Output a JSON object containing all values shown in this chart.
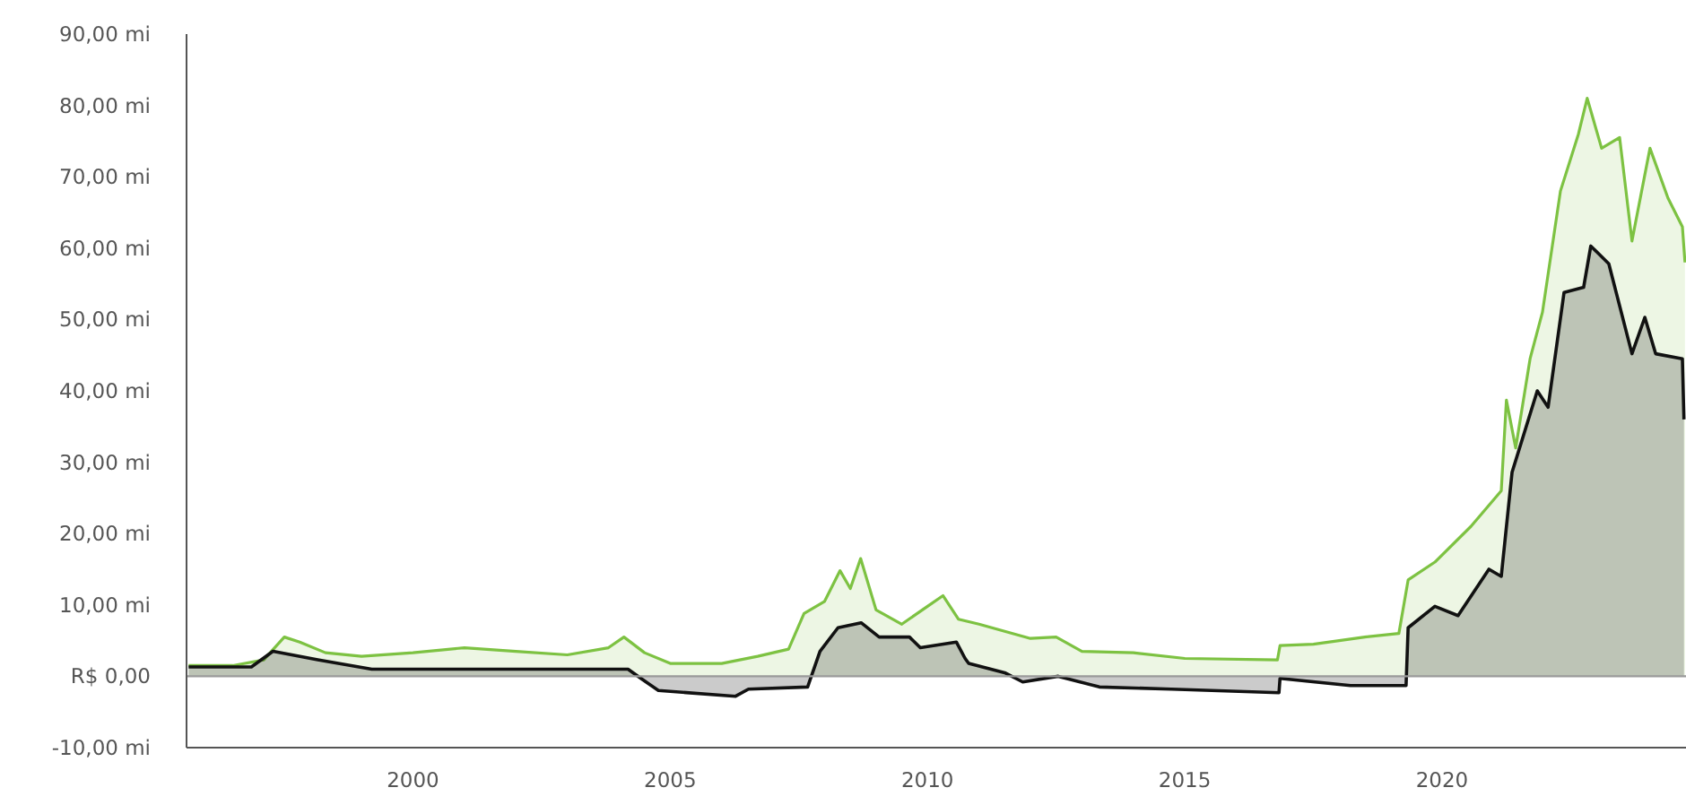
{
  "chart_data": {
    "type": "area",
    "xlim": [
      1995.6,
      2024.74
    ],
    "xticks": [
      2000,
      2005,
      2010,
      2015,
      2020
    ],
    "ylim": [
      -10,
      90
    ],
    "yticks": [
      {
        "value": -10,
        "label": "-10,00 mi"
      },
      {
        "value": 0,
        "label": "R$ 0,00"
      },
      {
        "value": 10,
        "label": "10,00 mi"
      },
      {
        "value": 20,
        "label": "20,00 mi"
      },
      {
        "value": 30,
        "label": "30,00 mi"
      },
      {
        "value": 40,
        "label": "40,00 mi"
      },
      {
        "value": 50,
        "label": "50,00 mi"
      },
      {
        "value": 60,
        "label": "60,00 mi"
      },
      {
        "value": 70,
        "label": "70,00 mi"
      },
      {
        "value": 80,
        "label": "80,00 mi"
      },
      {
        "value": 90,
        "label": "90,00 mi"
      }
    ],
    "grid": false,
    "ref_lines": [
      {
        "axis": "y",
        "value": 0,
        "color": "#9a9a9a"
      }
    ],
    "series": [
      {
        "color": "#7dc242",
        "x": [
          1995.64,
          1996.5,
          1997.1,
          1997.5,
          1997.8,
          1998.3,
          1999,
          2000,
          2001,
          2002,
          2003,
          2003.8,
          2004.1,
          2004.5,
          2005,
          2006,
          2006.7,
          2007.3,
          2007.6,
          2008,
          2008.3,
          2008.5,
          2008.7,
          2009,
          2009.5,
          2010,
          2010.3,
          2010.6,
          2011,
          2012,
          2012.5,
          2013,
          2014,
          2015,
          2016.8,
          2016.85,
          2017.5,
          2018.5,
          2019.16,
          2019.34,
          2019.86,
          2020.56,
          2021.15,
          2021.25,
          2021.43,
          2021.71,
          2021.95,
          2022.3,
          2022.65,
          2022.82,
          2023.1,
          2023.45,
          2023.69,
          2024.04,
          2024.39,
          2024.67,
          2024.72
        ],
        "values": [
          1.5,
          1.5,
          2.3,
          5.5,
          4.8,
          3.3,
          2.8,
          3.3,
          4,
          3.5,
          3,
          4,
          5.5,
          3.3,
          1.8,
          1.8,
          2.8,
          3.8,
          8.8,
          10.5,
          14.8,
          12.3,
          16.5,
          9.3,
          7.3,
          9.8,
          11.3,
          8,
          7.3,
          5.3,
          5.5,
          3.5,
          3.3,
          2.5,
          2.3,
          4.3,
          4.5,
          5.5,
          6,
          13.5,
          16,
          21,
          26,
          38.7,
          32,
          44.5,
          51,
          68,
          76,
          81,
          74,
          75.5,
          61,
          74,
          67,
          63,
          58
        ]
      },
      {
        "color": "#111111",
        "x": [
          1995.64,
          1996.86,
          1997.28,
          1998.15,
          1999.2,
          2002.09,
          2004.18,
          2004.43,
          2004.77,
          2006.27,
          2006.52,
          2007.67,
          2007.91,
          2008.26,
          2008.71,
          2009.06,
          2009.65,
          2009.86,
          2010.56,
          2010.73,
          2010.8,
          2011.5,
          2011.85,
          2012.54,
          2013.34,
          2014.74,
          2016.83,
          2016.85,
          2018.22,
          2019.3,
          2019.34,
          2019.86,
          2020.31,
          2020.91,
          2021.15,
          2021.36,
          2021.85,
          2022.06,
          2022.37,
          2022.75,
          2022.89,
          2023.24,
          2023.69,
          2023.94,
          2024.15,
          2024.67,
          2024.7
        ],
        "values": [
          1.3,
          1.3,
          3.5,
          2.3,
          1,
          1,
          1,
          -0.3,
          -2,
          -2.8,
          -1.8,
          -1.5,
          3.5,
          6.8,
          7.5,
          5.5,
          5.5,
          4,
          4.8,
          2.5,
          1.8,
          0.5,
          -0.8,
          0,
          -1.5,
          -1.8,
          -2.3,
          -0.3,
          -1.3,
          -1.3,
          6.8,
          9.8,
          8.5,
          15,
          14,
          28.6,
          40,
          37.7,
          53.8,
          54.5,
          60.3,
          57.8,
          45.2,
          50.3,
          45.2,
          44.5,
          36
        ]
      }
    ]
  }
}
